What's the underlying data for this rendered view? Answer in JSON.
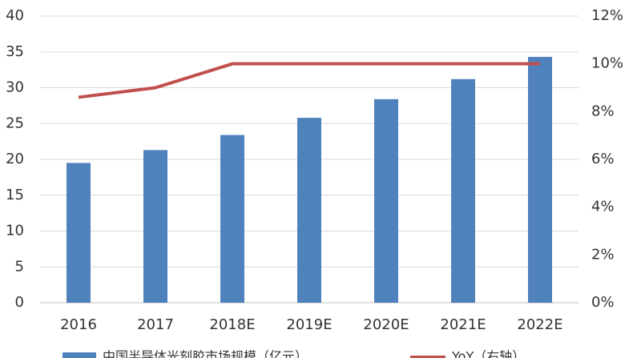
{
  "chart_data": {
    "type": "bar-line",
    "categories": [
      "2016",
      "2017",
      "2018E",
      "2019E",
      "2020E",
      "2021E",
      "2022E"
    ],
    "series": [
      {
        "name": "中国半导体光刻胶市场规模（亿元）",
        "color": "#4f81bd",
        "type": "bar",
        "values": [
          19.5,
          21.3,
          23.4,
          25.8,
          28.4,
          31.2,
          34.3
        ]
      },
      {
        "name": "YoY（右轴）",
        "color": "#c0504d",
        "type": "line",
        "axis": "y2",
        "values": [
          8.6,
          9.0,
          10,
          10,
          10,
          10,
          10
        ]
      }
    ],
    "ylim": [
      0,
      40
    ],
    "yticks": [
      0,
      5,
      10,
      15,
      20,
      25,
      30,
      35,
      40
    ],
    "y2lim": [
      0,
      12
    ],
    "y2ticks": [
      {
        "value": 0,
        "label": "0%"
      },
      {
        "value": 2,
        "label": "2%"
      },
      {
        "value": 4,
        "label": "4%"
      },
      {
        "value": 6,
        "label": "6%"
      },
      {
        "value": 8,
        "label": "8%"
      },
      {
        "value": 10,
        "label": "10%"
      },
      {
        "value": 12,
        "label": "12%"
      }
    ],
    "grid": true,
    "legend": "bottom"
  }
}
